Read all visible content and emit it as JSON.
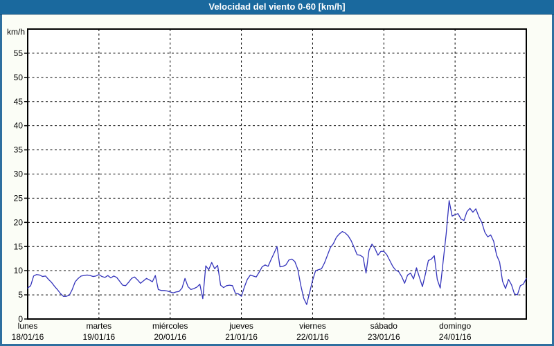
{
  "window": {
    "title": "Velocidad del viento 0-60 [km/h]"
  },
  "colors": {
    "titlebar_bg": "#1a699e",
    "titlebar_text": "#ffffff",
    "frame_border": "#2e6f9f",
    "content_bg": "#fbfdf6",
    "plot_bg": "#ffffff",
    "grid": "#000000",
    "axis_box": "#000000",
    "line": "#3333bb",
    "label_text": "#000000"
  },
  "chart_data": {
    "type": "line",
    "title": "Velocidad del viento 0-60 [km/h]",
    "ylabel": "km/h",
    "xlabel": "",
    "ylim": [
      0,
      60
    ],
    "yticks": [
      0,
      5,
      10,
      15,
      20,
      25,
      30,
      35,
      40,
      45,
      50,
      55
    ],
    "grid": "dashed",
    "legend": "none",
    "days": [
      {
        "name": "lunes",
        "date": "18/01/16"
      },
      {
        "name": "martes",
        "date": "19/01/16"
      },
      {
        "name": "miércoles",
        "date": "20/01/16"
      },
      {
        "name": "jueves",
        "date": "21/01/16"
      },
      {
        "name": "viernes",
        "date": "22/01/16"
      },
      {
        "name": "sábado",
        "date": "23/01/16"
      },
      {
        "name": "domingo",
        "date": "24/01/16"
      }
    ],
    "points_per_day": 24,
    "series": [
      {
        "name": "Velocidad del viento (km/h)",
        "values": [
          6.4,
          6.9,
          8.9,
          9.2,
          9.1,
          8.8,
          8.9,
          8.2,
          7.6,
          6.8,
          6.1,
          5.3,
          4.7,
          4.7,
          4.9,
          6.1,
          7.7,
          8.4,
          8.9,
          9.0,
          9.1,
          9.0,
          8.8,
          8.9,
          9.2,
          8.8,
          8.6,
          9.0,
          8.5,
          8.9,
          8.6,
          7.8,
          7.0,
          6.9,
          7.6,
          8.4,
          8.7,
          8.1,
          7.4,
          7.9,
          8.4,
          8.1,
          7.7,
          9.0,
          6.1,
          5.9,
          5.9,
          5.8,
          5.6,
          5.4,
          5.6,
          5.7,
          6.4,
          8.4,
          6.7,
          6.1,
          6.3,
          6.6,
          7.2,
          4.2,
          11.0,
          10.2,
          11.7,
          10.4,
          11.1,
          7.0,
          6.5,
          6.9,
          7.0,
          6.9,
          5.3,
          5.2,
          4.7,
          6.6,
          8.2,
          9.1,
          8.9,
          8.7,
          9.7,
          10.8,
          11.2,
          10.9,
          12.3,
          13.6,
          15.0,
          10.8,
          10.9,
          11.2,
          12.2,
          12.4,
          11.9,
          10.3,
          7.0,
          4.3,
          3.0,
          5.5,
          8.0,
          10.0,
          10.2,
          10.4,
          11.6,
          13.2,
          14.8,
          15.6,
          16.9,
          17.6,
          18.1,
          17.8,
          17.2,
          16.2,
          14.8,
          13.3,
          13.2,
          12.8,
          9.5,
          14.2,
          15.5,
          14.6,
          13.2,
          14.0,
          14.0,
          13.3,
          12.1,
          10.9,
          10.1,
          9.8,
          8.8,
          7.4,
          9.1,
          9.5,
          8.3,
          10.6,
          8.6,
          6.7,
          9.3,
          12.1,
          12.4,
          13.1,
          8.2,
          6.4,
          12.0,
          17.6,
          24.5,
          21.3,
          21.6,
          21.8,
          20.7,
          20.4,
          22.2,
          22.9,
          22.1,
          22.8,
          21.2,
          20.0,
          18.0,
          17.0,
          17.4,
          16.1,
          13.2,
          11.8,
          7.8,
          6.3,
          8.2,
          7.1,
          5.2,
          5.0,
          6.9,
          7.2,
          8.4
        ]
      }
    ]
  }
}
